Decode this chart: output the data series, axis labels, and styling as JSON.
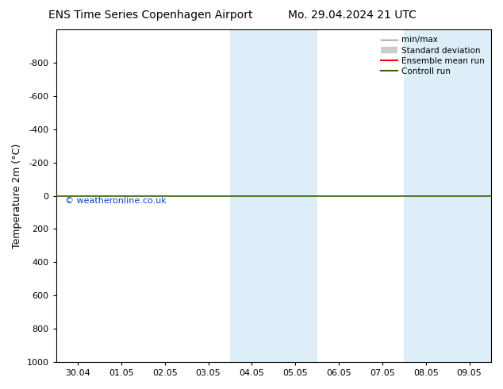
{
  "title_left": "ENS Time Series Copenhagen Airport",
  "title_right": "Mo. 29.04.2024 21 UTC",
  "ylabel": "Temperature 2m (°C)",
  "watermark": "© weatheronline.co.uk",
  "xlim_left": -0.5,
  "xlim_right": 9.5,
  "ylim_bottom": 1000,
  "ylim_top": -1000,
  "yticks": [
    -800,
    -600,
    -400,
    -200,
    0,
    200,
    400,
    600,
    800,
    1000
  ],
  "xtick_labels": [
    "30.04",
    "01.05",
    "02.05",
    "03.05",
    "04.05",
    "05.05",
    "06.05",
    "07.05",
    "08.05",
    "09.05"
  ],
  "xtick_positions": [
    0,
    1,
    2,
    3,
    4,
    5,
    6,
    7,
    8,
    9
  ],
  "blue_bands": [
    [
      3.5,
      4.5
    ],
    [
      4.5,
      5.5
    ],
    [
      7.5,
      8.5
    ],
    [
      8.5,
      9.5
    ]
  ],
  "blue_band_color": "#ddeef8",
  "green_line_y": 0,
  "green_line_color": "#336600",
  "red_line_color": "#ff0000",
  "bg_color": "#ffffff",
  "legend_items": [
    {
      "label": "min/max",
      "color": "#888888",
      "lw": 1.0,
      "style": "-"
    },
    {
      "label": "Standard deviation",
      "color": "#cccccc",
      "lw": 6,
      "style": "-"
    },
    {
      "label": "Ensemble mean run",
      "color": "#ff0000",
      "lw": 1.5,
      "style": "-"
    },
    {
      "label": "Controll run",
      "color": "#336600",
      "lw": 1.5,
      "style": "-"
    }
  ],
  "title_fontsize": 10,
  "tick_fontsize": 8,
  "ylabel_fontsize": 9
}
